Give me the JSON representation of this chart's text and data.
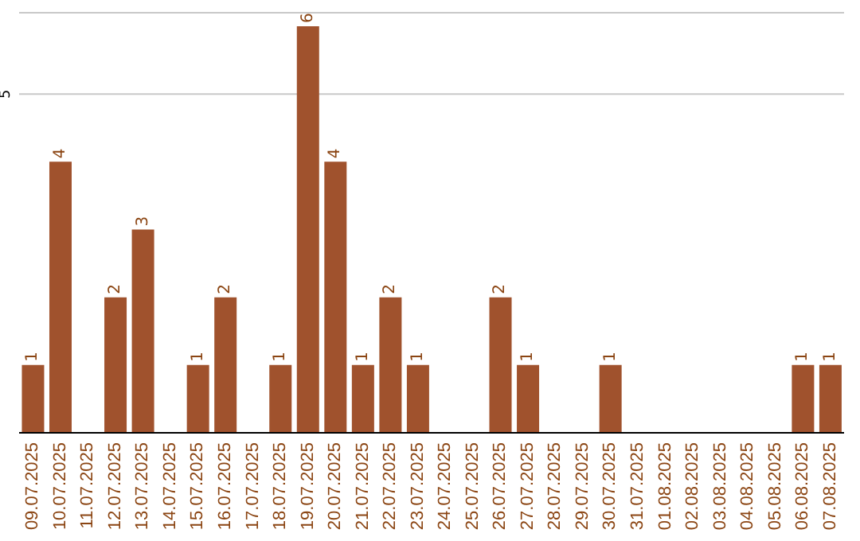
{
  "chart_data": {
    "type": "bar",
    "categories": [
      "09.07.2025",
      "10.07.2025",
      "11.07.2025",
      "12.07.2025",
      "13.07.2025",
      "14.07.2025",
      "15.07.2025",
      "16.07.2025",
      "17.07.2025",
      "18.07.2025",
      "19.07.2025",
      "20.07.2025",
      "21.07.2025",
      "22.07.2025",
      "23.07.2025",
      "24.07.2025",
      "25.07.2025",
      "26.07.2025",
      "27.07.2025",
      "28.07.2025",
      "29.07.2025",
      "30.07.2025",
      "31.07.2025",
      "01.08.2025",
      "02.08.2025",
      "03.08.2025",
      "04.08.2025",
      "05.08.2025",
      "06.08.2025",
      "07.08.2025"
    ],
    "values": [
      1,
      4,
      0,
      2,
      3,
      0,
      1,
      2,
      0,
      1,
      6,
      4,
      1,
      2,
      1,
      0,
      0,
      2,
      1,
      0,
      0,
      1,
      0,
      0,
      0,
      0,
      0,
      0,
      1,
      1
    ],
    "value_labels": [
      "1",
      "4",
      null,
      "2",
      "3",
      null,
      "1",
      "2",
      null,
      "1",
      "6",
      "4",
      "1",
      "2",
      "1",
      null,
      null,
      "2",
      "1",
      null,
      null,
      "1",
      null,
      null,
      null,
      null,
      null,
      null,
      "1",
      "1"
    ],
    "color": "#a0522d",
    "ylim": [
      0,
      6.2
    ],
    "yticks": [
      5
    ],
    "grid": "y"
  }
}
